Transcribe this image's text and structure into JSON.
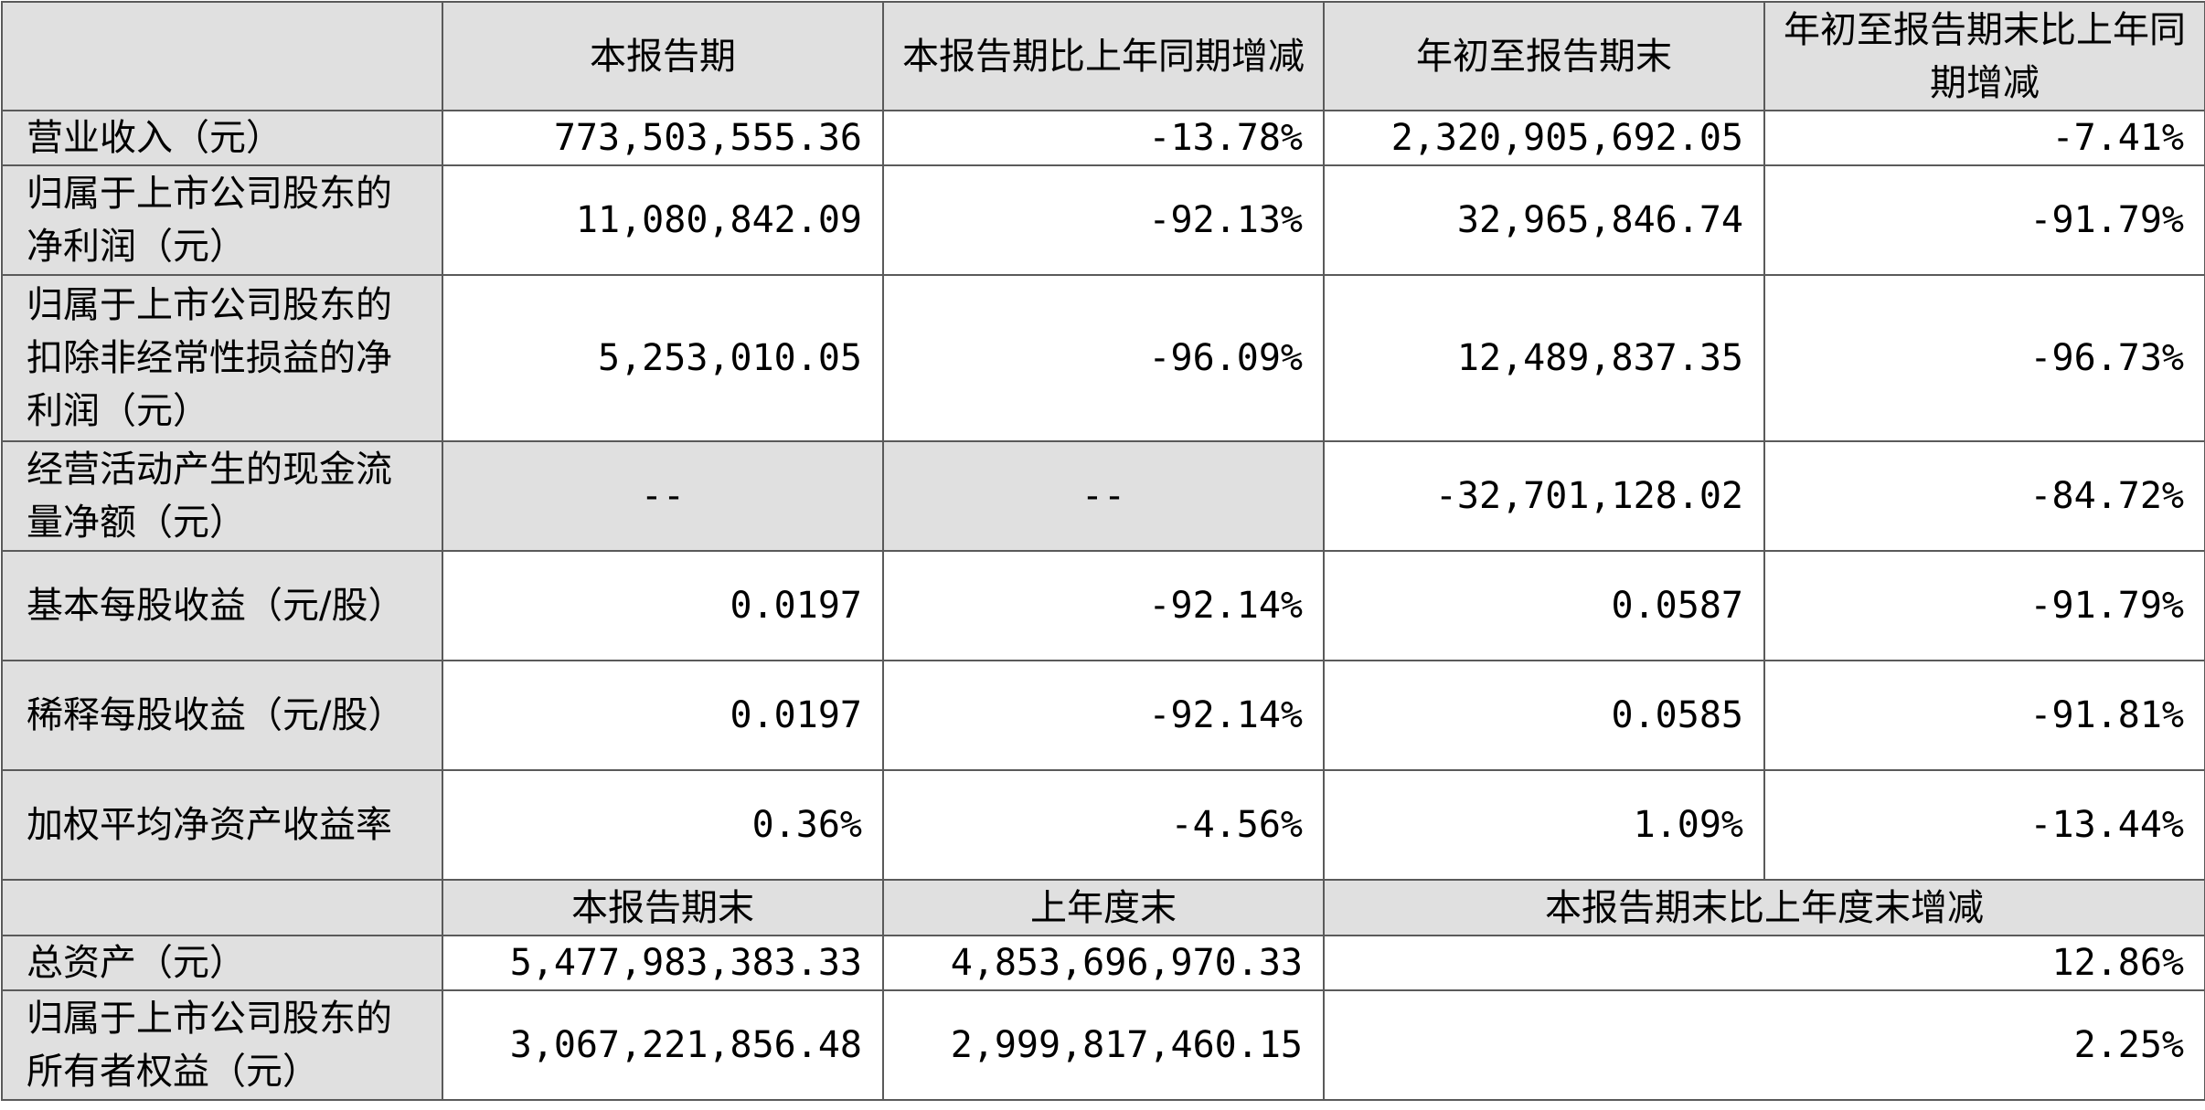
{
  "table": {
    "header": {
      "col1": "本报告期",
      "col2": "本报告期比上年同期增减",
      "col3": "年初至报告期末",
      "col4": "年初至报告期末比上年同期增减"
    },
    "rows": [
      {
        "label": "营业收入（元）",
        "v1": "773,503,555.36",
        "v2": "-13.78%",
        "v3": "2,320,905,692.05",
        "v4": "-7.41%"
      },
      {
        "label": "归属于上市公司股东的净利润（元）",
        "v1": "11,080,842.09",
        "v2": "-92.13%",
        "v3": "32,965,846.74",
        "v4": "-91.79%"
      },
      {
        "label": "归属于上市公司股东的扣除非经常性损益的净利润（元）",
        "v1": "5,253,010.05",
        "v2": "-96.09%",
        "v3": "12,489,837.35",
        "v4": "-96.73%"
      },
      {
        "label": "经营活动产生的现金流量净额（元）",
        "v1": "--",
        "v2": "--",
        "v3": "-32,701,128.02",
        "v4": "-84.72%"
      },
      {
        "label": "基本每股收益（元/股）",
        "v1": "0.0197",
        "v2": "-92.14%",
        "v3": "0.0587",
        "v4": "-91.79%"
      },
      {
        "label": "稀释每股收益（元/股）",
        "v1": "0.0197",
        "v2": "-92.14%",
        "v3": "0.0585",
        "v4": "-91.81%"
      },
      {
        "label": "加权平均净资产收益率",
        "v1": "0.36%",
        "v2": "-4.56%",
        "v3": "1.09%",
        "v4": "-13.44%"
      }
    ],
    "subheader": {
      "col1": "本报告期末",
      "col2": "上年度末",
      "col3": "本报告期末比上年度末增减"
    },
    "rows2": [
      {
        "label": "总资产（元）",
        "v1": "5,477,983,383.33",
        "v2": "4,853,696,970.33",
        "v3": "12.86%"
      },
      {
        "label": "归属于上市公司股东的所有者权益（元）",
        "v1": "3,067,221,856.48",
        "v2": "2,999,817,460.15",
        "v3": "2.25%"
      }
    ]
  }
}
